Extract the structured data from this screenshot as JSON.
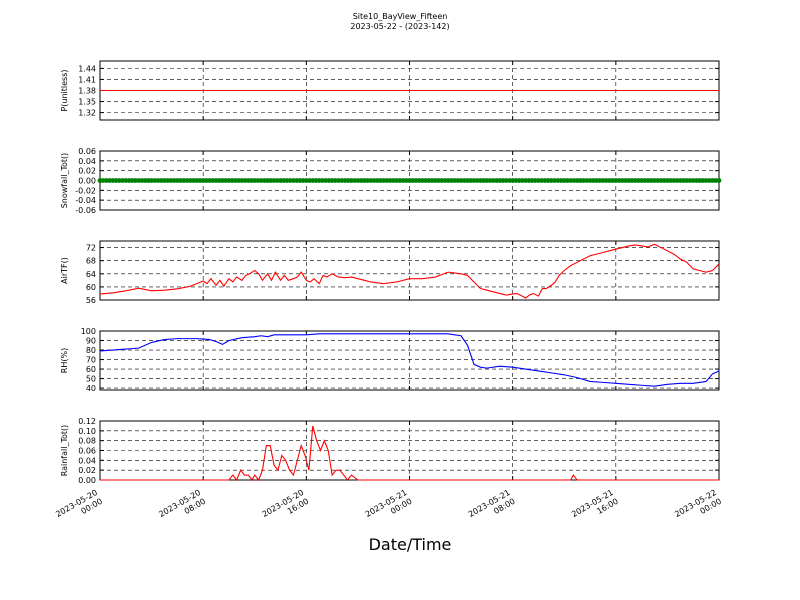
{
  "title_line1": "Site10_BayView_Fifteen",
  "title_line2": "2023-05-22 - (2023-142)",
  "xlabel": "Date/Time",
  "x_ticks": [
    {
      "t": 0,
      "line1": "2023-05-20",
      "line2": "00:00"
    },
    {
      "t": 8,
      "line1": "2023-05-20",
      "line2": "08:00"
    },
    {
      "t": 16,
      "line1": "2023-05-20",
      "line2": "16:00"
    },
    {
      "t": 24,
      "line1": "2023-05-21",
      "line2": "00:00"
    },
    {
      "t": 32,
      "line1": "2023-05-21",
      "line2": "08:00"
    },
    {
      "t": 40,
      "line1": "2023-05-21",
      "line2": "16:00"
    },
    {
      "t": 48,
      "line1": "2023-05-22",
      "line2": "00:00"
    }
  ],
  "chart_data": [
    {
      "type": "line",
      "ylabel": "P(unitless)",
      "color": "#ff0000",
      "ylim": [
        1.3,
        1.46
      ],
      "yticks": [
        "1.32",
        "1.35",
        "1.38",
        "1.41",
        "1.44"
      ],
      "x_hours": [
        0,
        48
      ],
      "y": [
        1.38,
        1.38
      ]
    },
    {
      "type": "scatter",
      "ylabel": "Snowfall_Tot()",
      "color": "#008000",
      "ylim": [
        -0.06,
        0.06
      ],
      "yticks": [
        "-0.06",
        "-0.04",
        "-0.02",
        "0.00",
        "0.02",
        "0.04",
        "0.06"
      ],
      "x_hours": [
        0,
        48
      ],
      "y": [
        0,
        0
      ]
    },
    {
      "type": "line",
      "ylabel": "AirTF()",
      "color": "#ff0000",
      "ylim": [
        56,
        74
      ],
      "yticks": [
        "56",
        "60",
        "64",
        "68",
        "72"
      ],
      "x_hours": [
        0,
        1,
        2,
        3,
        4,
        5,
        6,
        6.5,
        7,
        7.5,
        8,
        8.3,
        8.6,
        9,
        9.3,
        9.6,
        10,
        10.3,
        10.6,
        11,
        11.3,
        11.6,
        12,
        12.3,
        12.6,
        13,
        13.3,
        13.6,
        14,
        14.3,
        14.6,
        15,
        15.3,
        15.6,
        16,
        16.3,
        16.6,
        17,
        17.3,
        17.6,
        18,
        18.5,
        19,
        19.5,
        20,
        20.5,
        21,
        22,
        23,
        24,
        25,
        26,
        27,
        28,
        28.5,
        29,
        29.5,
        30,
        30.5,
        31,
        31.5,
        32,
        32.3,
        32.6,
        33,
        33.3,
        33.6,
        34,
        34.3,
        34.6,
        35,
        35.3,
        35.6,
        36,
        36.5,
        37,
        37.5,
        38,
        38.5,
        39,
        39.5,
        40,
        40.5,
        41,
        41.5,
        42,
        42.5,
        43,
        43.5,
        44,
        44.5,
        45,
        45.5,
        46,
        46.5,
        47,
        47.5,
        48
      ],
      "y": [
        57.8,
        58.2,
        58.8,
        59.6,
        58.8,
        59,
        59.4,
        59.8,
        60.2,
        61,
        61.8,
        61,
        62.5,
        60.5,
        62,
        60.2,
        62.5,
        61.5,
        63,
        62,
        63.5,
        64,
        65,
        64,
        62,
        64,
        62,
        64.5,
        62,
        63.5,
        62,
        62.5,
        63,
        64.5,
        62,
        61.5,
        62.5,
        61,
        63.5,
        63,
        64,
        63,
        62.8,
        63,
        62.5,
        62,
        61.5,
        61,
        61.5,
        62.5,
        62.5,
        63,
        64.5,
        64,
        63.5,
        61.5,
        59.5,
        59,
        58.5,
        58,
        57.5,
        57.8,
        58,
        57.5,
        56.6,
        57.5,
        58,
        57.2,
        59.5,
        59.5,
        60.5,
        61.5,
        63.5,
        65,
        66.5,
        67.5,
        68.5,
        69.5,
        70,
        70.5,
        71,
        71.5,
        72,
        72.5,
        72.8,
        72.5,
        72.2,
        73,
        72,
        71,
        70,
        68.5,
        67.5,
        65.5,
        65,
        64.5,
        65,
        67
      ]
    },
    {
      "type": "line",
      "ylabel": "RH(%)",
      "color": "#0000ff",
      "ylim": [
        38,
        100
      ],
      "yticks": [
        "40",
        "50",
        "60",
        "70",
        "80",
        "90",
        "100"
      ],
      "x_hours": [
        0,
        1,
        2,
        3,
        4,
        5,
        6,
        7,
        7.5,
        8,
        8.5,
        9,
        9.5,
        10,
        11,
        12,
        12.5,
        13,
        13.5,
        14,
        15,
        16,
        17,
        18,
        19,
        20,
        21,
        22,
        23,
        24,
        25,
        26,
        27,
        27.5,
        28,
        28.5,
        29,
        29.5,
        30,
        31,
        32,
        33,
        34,
        35,
        36,
        37,
        38,
        39,
        40,
        41,
        42,
        43,
        44,
        45,
        46,
        47,
        47.5,
        48
      ],
      "y": [
        79,
        80,
        81,
        82,
        88,
        91,
        92,
        92,
        92,
        91.5,
        91,
        89,
        86,
        90,
        93,
        94,
        95,
        94,
        96,
        96,
        96,
        96,
        97,
        97,
        97,
        97,
        97,
        97,
        97,
        97,
        97,
        97,
        97,
        96,
        95,
        85,
        65,
        62,
        61,
        63,
        62,
        60,
        58,
        56,
        54,
        51,
        47,
        46,
        45,
        44,
        43,
        42,
        44,
        45,
        45,
        47,
        55,
        58
      ]
    },
    {
      "type": "line",
      "ylabel": "Rainfall_Tot()",
      "color": "#ff0000",
      "ylim": [
        0,
        0.12
      ],
      "yticks": [
        "0.00",
        "0.02",
        "0.04",
        "0.06",
        "0.08",
        "0.10",
        "0.12"
      ],
      "x_hours": [
        0,
        10,
        10.3,
        10.6,
        10.9,
        11.2,
        11.5,
        11.8,
        12,
        12.3,
        12.6,
        12.9,
        13.2,
        13.5,
        13.8,
        14.1,
        14.4,
        14.7,
        15,
        15.3,
        15.6,
        15.9,
        16.2,
        16.5,
        16.8,
        17.1,
        17.4,
        17.7,
        18,
        18.3,
        18.6,
        18.9,
        19.2,
        19.5,
        20,
        36.5,
        36.7,
        37,
        48
      ],
      "y": [
        0,
        0,
        0.01,
        0,
        0.02,
        0.01,
        0.01,
        0,
        0.01,
        0,
        0.02,
        0.07,
        0.07,
        0.03,
        0.02,
        0.05,
        0.04,
        0.02,
        0.01,
        0.04,
        0.07,
        0.05,
        0.02,
        0.11,
        0.08,
        0.06,
        0.08,
        0.06,
        0.01,
        0.02,
        0.02,
        0.01,
        0,
        0.01,
        0,
        0,
        0.01,
        0,
        0
      ]
    }
  ]
}
